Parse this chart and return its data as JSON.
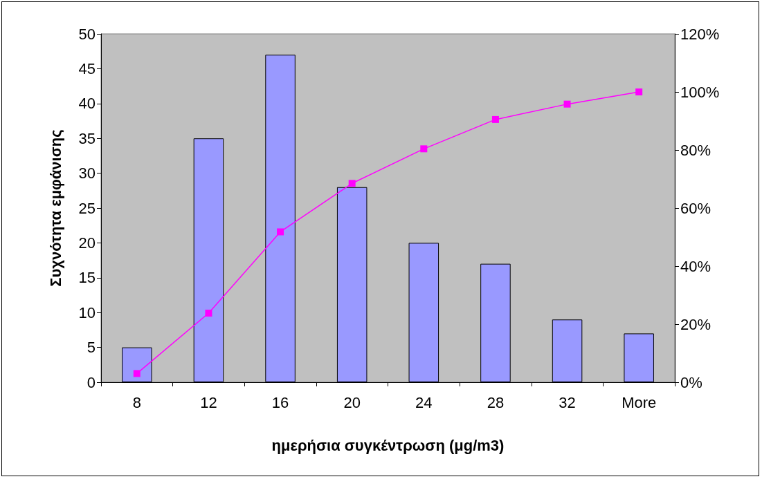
{
  "chart_data": {
    "type": "bar",
    "xlabel": "ημερήσια συγκέντρωση (μg/m3)",
    "ylabel": "Συχνότητα εμφάνισης",
    "categories": [
      "8",
      "12",
      "16",
      "20",
      "24",
      "28",
      "32",
      "More"
    ],
    "series": [
      {
        "color": "#9999ff",
        "values": [
          5,
          35,
          47,
          28,
          20,
          17,
          9,
          7
        ]
      },
      {
        "type": "line",
        "axis": "y2",
        "color": "#ff00ff",
        "marker": "square",
        "values": [
          3.0,
          23.8,
          51.8,
          68.5,
          80.4,
          90.5,
          95.8,
          100
        ]
      }
    ],
    "ylim": [
      0,
      50
    ],
    "yticks": [
      0,
      5,
      10,
      15,
      20,
      25,
      30,
      35,
      40,
      45,
      50
    ],
    "y2lim": [
      0,
      120
    ],
    "y2ticks": [
      {
        "value": 0,
        "label": "0%"
      },
      {
        "value": 20,
        "label": "20%"
      },
      {
        "value": 40,
        "label": "40%"
      },
      {
        "value": 60,
        "label": "60%"
      },
      {
        "value": 80,
        "label": "80%"
      },
      {
        "value": 100,
        "label": "100%"
      },
      {
        "value": 120,
        "label": "120%"
      }
    ],
    "grid": false
  }
}
